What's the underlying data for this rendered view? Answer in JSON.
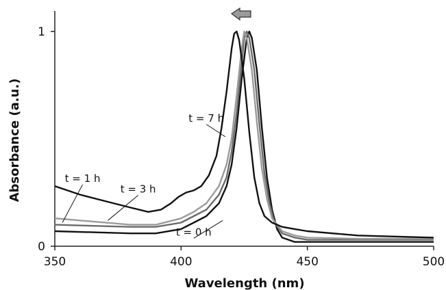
{
  "chart_data": {
    "type": "line",
    "xlabel": "Wavelength (nm)",
    "ylabel": "Absorbance (a.u.)",
    "xlim": [
      350,
      500
    ],
    "ylim": [
      0,
      1
    ],
    "x_ticks": [
      "350",
      "400",
      "450",
      "500"
    ],
    "y_ticks": [
      "0",
      "1"
    ],
    "grid": false,
    "annotation": "left-pointing arrow indicating peak shift to shorter wavelength over time",
    "series": [
      {
        "name": "t = 0 h",
        "color": "#111111",
        "points": [
          [
            350,
            0.07
          ],
          [
            380,
            0.06
          ],
          [
            390,
            0.06
          ],
          [
            400,
            0.08
          ],
          [
            405,
            0.11
          ],
          [
            410,
            0.14
          ],
          [
            415,
            0.2
          ],
          [
            418,
            0.28
          ],
          [
            420,
            0.38
          ],
          [
            422,
            0.55
          ],
          [
            424,
            0.78
          ],
          [
            426,
            0.97
          ],
          [
            427,
            1.0
          ],
          [
            428,
            0.97
          ],
          [
            430,
            0.82
          ],
          [
            432,
            0.55
          ],
          [
            434,
            0.32
          ],
          [
            436,
            0.17
          ],
          [
            438,
            0.08
          ],
          [
            440,
            0.04
          ],
          [
            445,
            0.02
          ],
          [
            450,
            0.02
          ],
          [
            470,
            0.02
          ],
          [
            500,
            0.02
          ]
        ]
      },
      {
        "name": "t = 1 h",
        "color": "#6a6a6a",
        "points": [
          [
            350,
            0.1
          ],
          [
            380,
            0.09
          ],
          [
            390,
            0.09
          ],
          [
            400,
            0.11
          ],
          [
            405,
            0.14
          ],
          [
            410,
            0.17
          ],
          [
            415,
            0.24
          ],
          [
            418,
            0.32
          ],
          [
            420,
            0.44
          ],
          [
            422,
            0.62
          ],
          [
            424,
            0.85
          ],
          [
            425,
            0.97
          ],
          [
            426,
            1.0
          ],
          [
            427,
            0.97
          ],
          [
            429,
            0.82
          ],
          [
            431,
            0.57
          ],
          [
            433,
            0.34
          ],
          [
            435,
            0.2
          ],
          [
            437,
            0.11
          ],
          [
            440,
            0.06
          ],
          [
            445,
            0.04
          ],
          [
            450,
            0.03
          ],
          [
            470,
            0.03
          ],
          [
            500,
            0.03
          ]
        ]
      },
      {
        "name": "t = 3 h",
        "color": "#9a9a9a",
        "points": [
          [
            350,
            0.13
          ],
          [
            380,
            0.1
          ],
          [
            390,
            0.1
          ],
          [
            400,
            0.13
          ],
          [
            405,
            0.16
          ],
          [
            410,
            0.2
          ],
          [
            415,
            0.28
          ],
          [
            418,
            0.38
          ],
          [
            420,
            0.5
          ],
          [
            422,
            0.7
          ],
          [
            424,
            0.92
          ],
          [
            425,
            1.0
          ],
          [
            426,
            0.97
          ],
          [
            428,
            0.82
          ],
          [
            430,
            0.58
          ],
          [
            432,
            0.36
          ],
          [
            434,
            0.22
          ],
          [
            436,
            0.13
          ],
          [
            440,
            0.07
          ],
          [
            445,
            0.05
          ],
          [
            450,
            0.04
          ],
          [
            470,
            0.035
          ],
          [
            500,
            0.035
          ]
        ]
      },
      {
        "name": "t = 7 h",
        "color": "#111111",
        "points": [
          [
            350,
            0.28
          ],
          [
            360,
            0.24
          ],
          [
            370,
            0.21
          ],
          [
            380,
            0.18
          ],
          [
            387,
            0.16
          ],
          [
            392,
            0.17
          ],
          [
            396,
            0.2
          ],
          [
            399,
            0.23
          ],
          [
            402,
            0.25
          ],
          [
            405,
            0.26
          ],
          [
            408,
            0.28
          ],
          [
            411,
            0.33
          ],
          [
            414,
            0.42
          ],
          [
            416,
            0.55
          ],
          [
            418,
            0.72
          ],
          [
            420,
            0.92
          ],
          [
            421,
            0.99
          ],
          [
            422,
            1.0
          ],
          [
            423,
            0.96
          ],
          [
            425,
            0.78
          ],
          [
            427,
            0.53
          ],
          [
            429,
            0.32
          ],
          [
            431,
            0.2
          ],
          [
            433,
            0.14
          ],
          [
            436,
            0.11
          ],
          [
            440,
            0.09
          ],
          [
            445,
            0.08
          ],
          [
            450,
            0.07
          ],
          [
            470,
            0.05
          ],
          [
            500,
            0.04
          ]
        ]
      }
    ],
    "labels": [
      {
        "text": "t = 1 h",
        "x": 361,
        "y": 0.3,
        "tx": 353,
        "ty": 0.11
      },
      {
        "text": "t = 3 h",
        "x": 383,
        "y": 0.25,
        "tx": 371,
        "ty": 0.12
      },
      {
        "text": "t = 7 h",
        "x": 410,
        "y": 0.58,
        "tx": 417.5,
        "ty": 0.51
      },
      {
        "text": "t = 0 h",
        "x": 405,
        "y": 0.05,
        "tx": 416.5,
        "ty": 0.12
      }
    ]
  }
}
